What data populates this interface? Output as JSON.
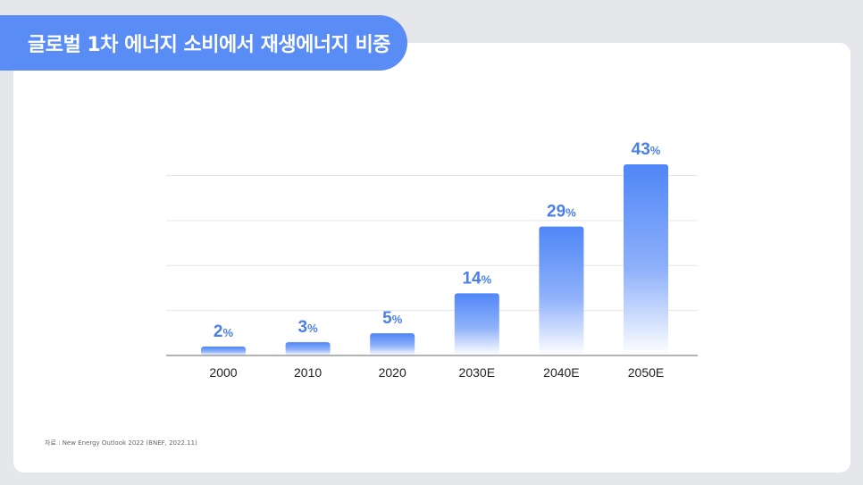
{
  "title": "글로벌 1차 에너지 소비에서 재생에너지 비중",
  "source": "자료 : New Energy Outlook 2022 (BNEF, 2022.11)",
  "colors": {
    "accent": "#5a8cf5",
    "bar_top": "#4f86f7",
    "bar_bottom": "#ffffff",
    "label": "#4a7fe8",
    "grid": "#e6e6e6",
    "axis": "#888888"
  },
  "chart_data": {
    "type": "bar",
    "title": "글로벌 1차 에너지 소비에서 재생에너지 비중",
    "categories": [
      "2000",
      "2010",
      "2020",
      "2030E",
      "2040E",
      "2050E"
    ],
    "values": [
      2,
      3,
      5,
      14,
      29,
      43
    ],
    "value_labels": [
      "2",
      "3",
      "5",
      "14",
      "29",
      "43"
    ],
    "unit": "%",
    "xlabel": "",
    "ylabel": "",
    "ylim": [
      0,
      43
    ],
    "grid": true,
    "gridlines": [
      10.125,
      20.25,
      30.375,
      40.5
    ],
    "legend": "none"
  }
}
